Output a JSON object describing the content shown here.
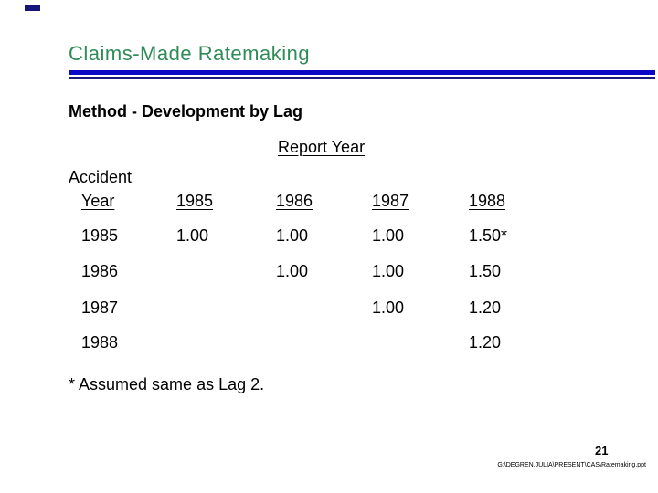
{
  "slide": {
    "title": "Claims-Made Ratemaking",
    "subtitle": "Method - Development by Lag",
    "table": {
      "spanner": "Report Year",
      "row_header_line1": "Accident",
      "row_header_line2": "Year",
      "columns": [
        "1985",
        "1986",
        "1987",
        "1988"
      ],
      "rows": [
        {
          "label": "1985",
          "values": [
            "1.00",
            "1.00",
            "1.00",
            "1.50*"
          ]
        },
        {
          "label": "1986",
          "values": [
            "",
            "1.00",
            "1.00",
            "1.50"
          ]
        },
        {
          "label": "1987",
          "values": [
            "",
            "",
            "1.00",
            "1.20"
          ]
        },
        {
          "label": "1988",
          "values": [
            "",
            "",
            "",
            "1.20"
          ]
        }
      ]
    },
    "footnote": "* Assumed same as Lag 2.",
    "page_number": "21",
    "footer_path": "G:\\DEGREN.JULIA\\PRESENT\\CAS\\Ratemaking.ppt",
    "colors": {
      "title_green": "#2f8b57",
      "rule_blue": "#0a0ac6",
      "rule_navy": "#1a1a7e"
    }
  }
}
